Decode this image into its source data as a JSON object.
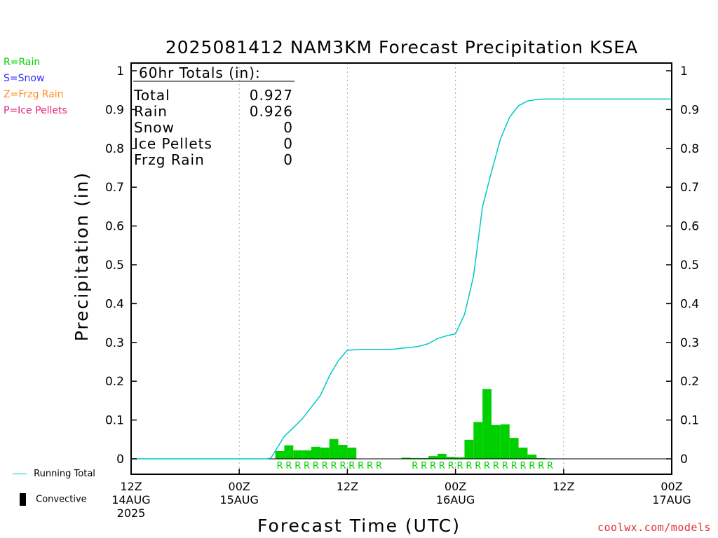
{
  "chart_data": {
    "type": "bar",
    "title": "2025081412 NAM3KM Forecast Precipitation KSEA",
    "xlabel": "Forecast Time (UTC)",
    "ylabel": "Precipitation (in)",
    "ylim": [
      0,
      1
    ],
    "yticks": [
      "0",
      "0.1",
      "0.2",
      "0.3",
      "0.4",
      "0.5",
      "0.6",
      "0.7",
      "0.8",
      "0.9",
      "1"
    ],
    "xrange_hours": [
      0,
      60
    ],
    "xticks": [
      {
        "hour": 0,
        "lines": [
          "12Z",
          "14AUG",
          "2025"
        ]
      },
      {
        "hour": 12,
        "lines": [
          "00Z",
          "15AUG"
        ]
      },
      {
        "hour": 24,
        "lines": [
          "12Z"
        ]
      },
      {
        "hour": 36,
        "lines": [
          "00Z",
          "16AUG"
        ]
      },
      {
        "hour": 48,
        "lines": [
          "12Z"
        ]
      },
      {
        "hour": 60,
        "lines": [
          "00Z",
          "17AUG"
        ]
      }
    ],
    "grid_x": "dotted vertical lines at each x tick",
    "colors": {
      "rain": "#00d000",
      "total_line": "#00c8c8",
      "snow": "#3030ff",
      "frzg_rain": "#ff8c28",
      "ice_pellets": "#e0207a",
      "convective": "#000000"
    },
    "series": [
      {
        "name": "Rain",
        "type": "bar",
        "x_hours": [
          16.5,
          17.5,
          18.5,
          19.5,
          20.5,
          21.5,
          22.5,
          23.5,
          24.5,
          30.5,
          31.5,
          32.5,
          33.5,
          34.5,
          35.5,
          36.5,
          37.5,
          38.5,
          39.5,
          40.5,
          41.5,
          42.5,
          43.5,
          44.5,
          45.5,
          46.5
        ],
        "values": [
          0.02,
          0.035,
          0.022,
          0.022,
          0.031,
          0.029,
          0.051,
          0.036,
          0.029,
          0.003,
          0.002,
          0.002,
          0.007,
          0.013,
          0.005,
          0.004,
          0.049,
          0.095,
          0.18,
          0.087,
          0.089,
          0.054,
          0.029,
          0.011,
          0.002,
          0.001
        ]
      },
      {
        "name": "Running Total",
        "type": "line",
        "x_hours": [
          0,
          15,
          15.5,
          16,
          17,
          18,
          19,
          20,
          21,
          22,
          23,
          24,
          25,
          26,
          27,
          28,
          29,
          30,
          31,
          32,
          33,
          34,
          35,
          36,
          37,
          38,
          39,
          40,
          41,
          42,
          43,
          44,
          45,
          46,
          47,
          48,
          60
        ],
        "values": [
          0,
          0,
          0.002,
          0.02,
          0.058,
          0.08,
          0.103,
          0.133,
          0.163,
          0.213,
          0.253,
          0.28,
          0.281,
          0.282,
          0.282,
          0.282,
          0.282,
          0.285,
          0.287,
          0.29,
          0.297,
          0.31,
          0.317,
          0.322,
          0.372,
          0.47,
          0.65,
          0.74,
          0.825,
          0.88,
          0.91,
          0.922,
          0.926,
          0.927,
          0.927,
          0.927,
          0.927
        ]
      }
    ],
    "ptype_markers": {
      "letter": "R",
      "x_hours": [
        16.5,
        17.5,
        18.5,
        19.5,
        20.5,
        21.5,
        22.5,
        23.5,
        24.5,
        25.5,
        26.5,
        27.5,
        31.5,
        32.5,
        33.5,
        34.5,
        35.5,
        36.5,
        37.5,
        38.5,
        39.5,
        40.5,
        41.5,
        42.5,
        43.5,
        44.5,
        45.5,
        46.5
      ]
    },
    "totals_box": {
      "header": "60hr Totals (in):",
      "rows": [
        {
          "label": "Total",
          "value": "0.927"
        },
        {
          "label": "Rain",
          "value": "0.926"
        },
        {
          "label": "Snow",
          "value": "0"
        },
        {
          "label": "Ice Pellets",
          "value": "0"
        },
        {
          "label": "Frzg Rain",
          "value": "0"
        }
      ]
    }
  },
  "ptype_legend": [
    {
      "text": "R=Rain",
      "color": "#00d000"
    },
    {
      "text": "S=Snow",
      "color": "#3030ff"
    },
    {
      "text": "Z=Frzg Rain",
      "color": "#ff8c28"
    },
    {
      "text": "P=Ice Pellets",
      "color": "#e0207a"
    }
  ],
  "bottom_legend": {
    "running_total_label": "Running Total",
    "convective_label": "Convective"
  },
  "credit": "coolwx.com/models",
  "credit_color": "#e03030"
}
